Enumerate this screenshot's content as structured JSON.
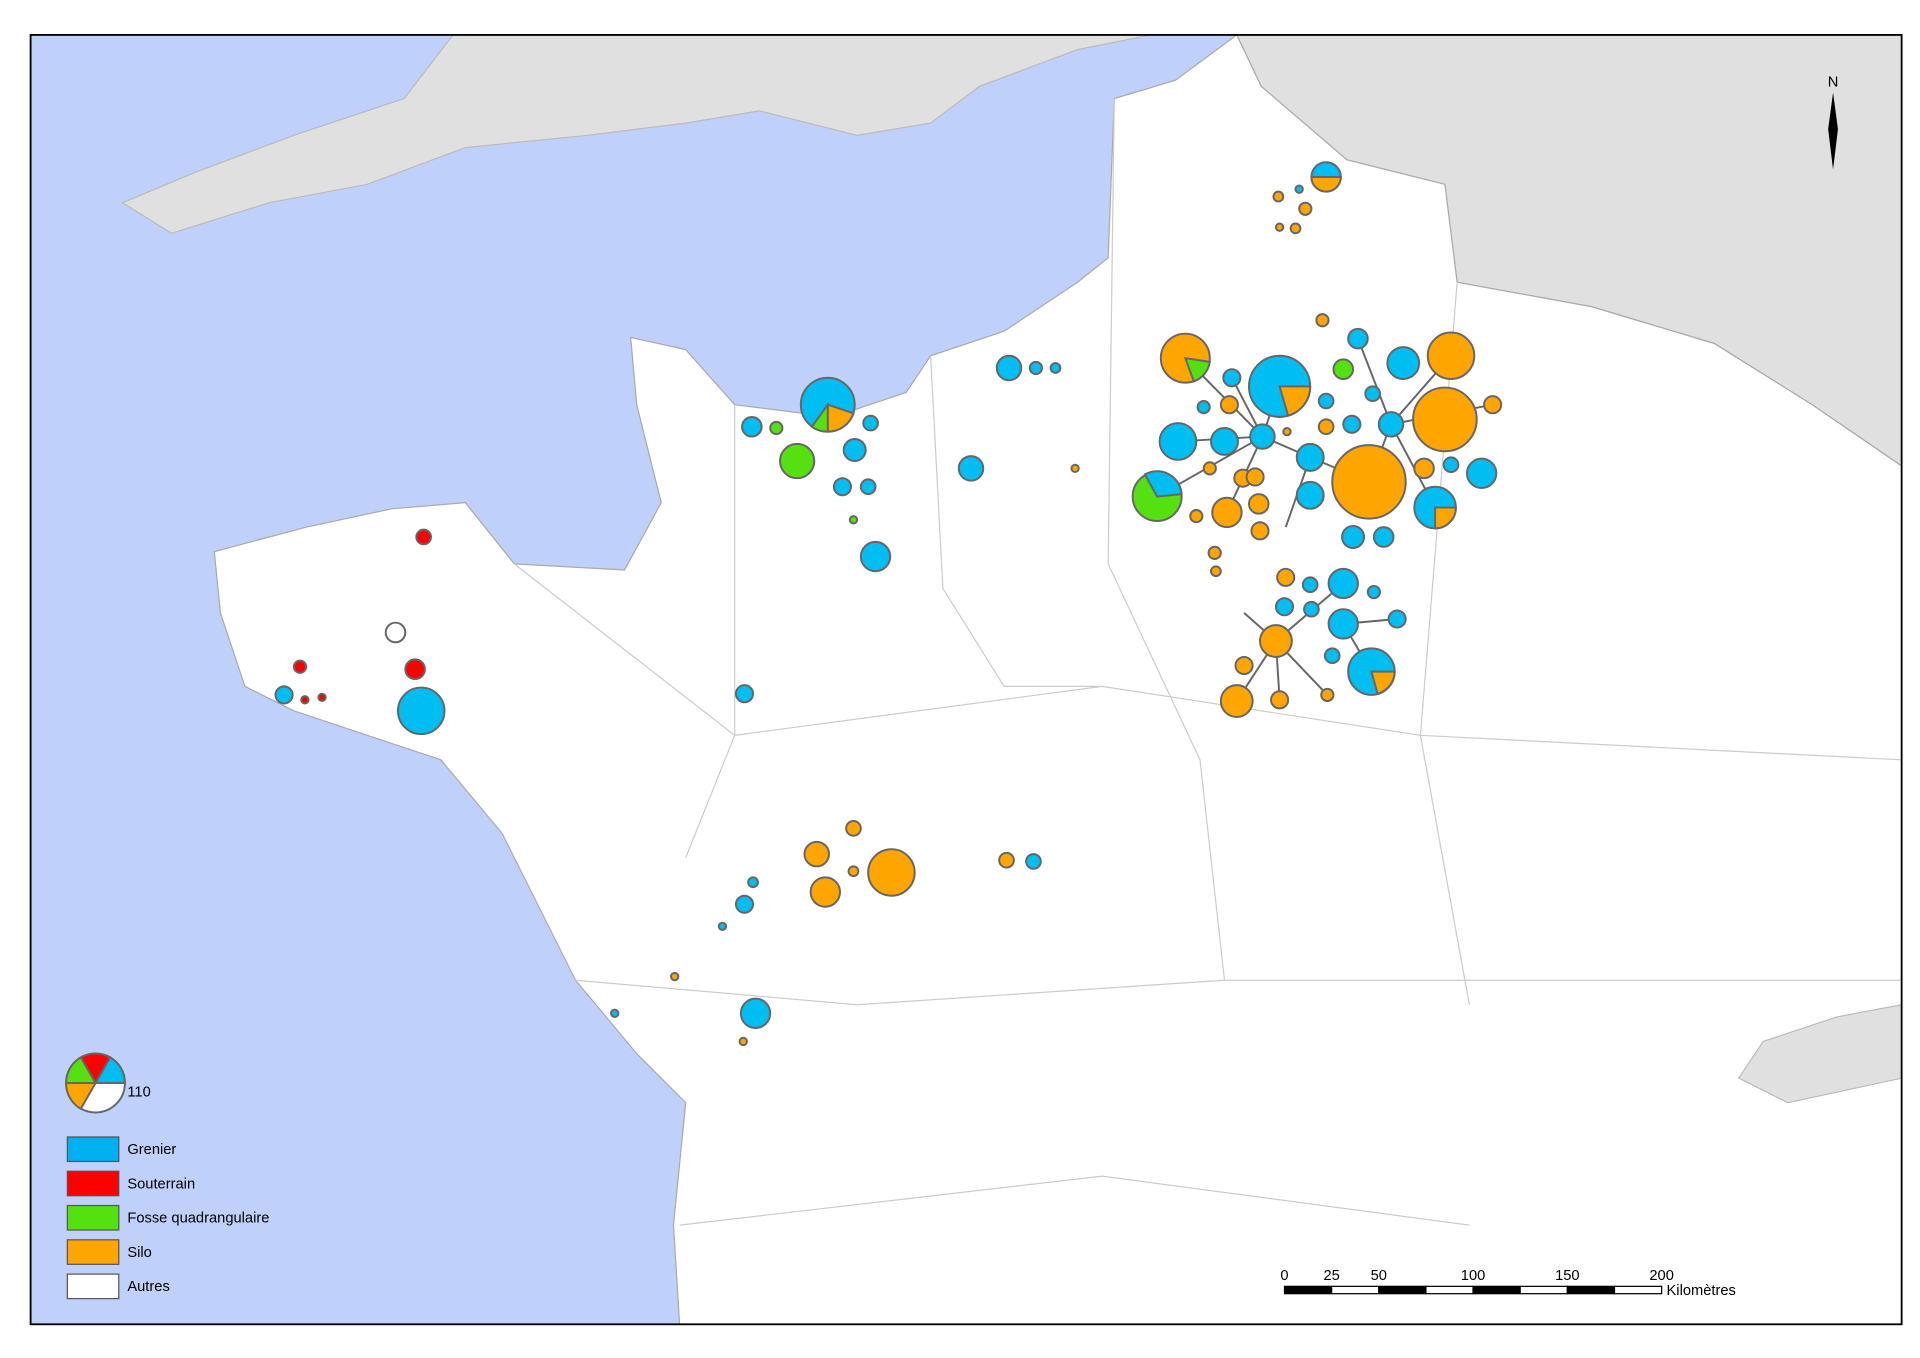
{
  "legend": {
    "size_label": "110",
    "items": [
      {
        "label": "Grenier",
        "color": "#00b0f0"
      },
      {
        "label": "Souterrain",
        "color": "#ff0000"
      },
      {
        "label": "Fosse quadrangulaire",
        "color": "#55e010"
      },
      {
        "label": "Silo",
        "color": "#ffa500"
      },
      {
        "label": "Autres",
        "color": "#ffffff"
      }
    ]
  },
  "scale_bar": {
    "ticks": [
      0,
      25,
      50,
      100,
      150,
      200
    ],
    "unit": "Kilomètres"
  },
  "north_arrow": "N"
}
